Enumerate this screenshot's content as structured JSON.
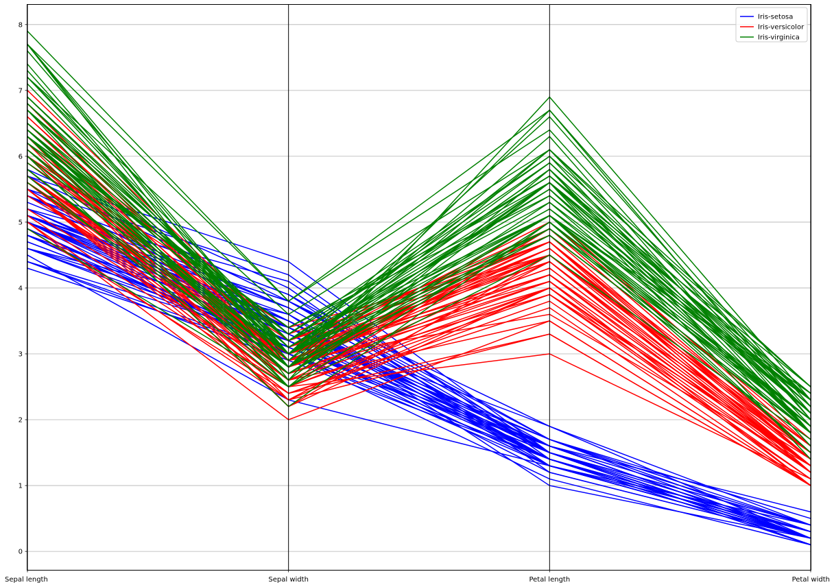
{
  "chart_data": {
    "type": "line",
    "subtype": "parallel-coordinates",
    "title": "",
    "categories": [
      "Sepal length",
      "Sepal width",
      "Petal length",
      "Petal width"
    ],
    "ylim": [
      -0.28,
      8.3
    ],
    "yticks": [
      0,
      1,
      2,
      3,
      4,
      5,
      6,
      7,
      8
    ],
    "grid": true,
    "legend": {
      "placement": "top-right"
    },
    "colors": {
      "Iris-setosa": "#0000ff",
      "Iris-versicolor": "#ff0000",
      "Iris-virginica": "#008000"
    },
    "series": [
      {
        "name": "Iris-setosa",
        "records": [
          [
            5.1,
            3.5,
            1.4,
            0.2
          ],
          [
            4.9,
            3.0,
            1.4,
            0.2
          ],
          [
            4.7,
            3.2,
            1.3,
            0.2
          ],
          [
            4.6,
            3.1,
            1.5,
            0.2
          ],
          [
            5.0,
            3.6,
            1.4,
            0.2
          ],
          [
            5.4,
            3.9,
            1.7,
            0.4
          ],
          [
            4.6,
            3.4,
            1.4,
            0.3
          ],
          [
            5.0,
            3.4,
            1.5,
            0.2
          ],
          [
            4.4,
            2.9,
            1.4,
            0.2
          ],
          [
            4.9,
            3.1,
            1.5,
            0.1
          ],
          [
            5.4,
            3.7,
            1.5,
            0.2
          ],
          [
            4.8,
            3.4,
            1.6,
            0.2
          ],
          [
            4.8,
            3.0,
            1.4,
            0.1
          ],
          [
            4.3,
            3.0,
            1.1,
            0.1
          ],
          [
            5.8,
            4.0,
            1.2,
            0.2
          ],
          [
            5.7,
            4.4,
            1.5,
            0.4
          ],
          [
            5.4,
            3.9,
            1.3,
            0.4
          ],
          [
            5.1,
            3.5,
            1.4,
            0.3
          ],
          [
            5.7,
            3.8,
            1.7,
            0.3
          ],
          [
            5.1,
            3.8,
            1.5,
            0.3
          ],
          [
            5.4,
            3.4,
            1.7,
            0.2
          ],
          [
            5.1,
            3.7,
            1.5,
            0.4
          ],
          [
            4.6,
            3.6,
            1.0,
            0.2
          ],
          [
            5.1,
            3.3,
            1.7,
            0.5
          ],
          [
            4.8,
            3.4,
            1.9,
            0.2
          ],
          [
            5.0,
            3.0,
            1.6,
            0.2
          ],
          [
            5.0,
            3.4,
            1.6,
            0.4
          ],
          [
            5.2,
            3.5,
            1.5,
            0.2
          ],
          [
            5.2,
            3.4,
            1.4,
            0.2
          ],
          [
            4.7,
            3.2,
            1.6,
            0.2
          ],
          [
            4.8,
            3.1,
            1.6,
            0.2
          ],
          [
            5.4,
            3.4,
            1.5,
            0.4
          ],
          [
            5.2,
            4.1,
            1.5,
            0.1
          ],
          [
            5.5,
            4.2,
            1.4,
            0.2
          ],
          [
            4.9,
            3.1,
            1.5,
            0.1
          ],
          [
            5.0,
            3.2,
            1.2,
            0.2
          ],
          [
            5.5,
            3.5,
            1.3,
            0.2
          ],
          [
            4.9,
            3.1,
            1.5,
            0.1
          ],
          [
            4.4,
            3.0,
            1.3,
            0.2
          ],
          [
            5.1,
            3.4,
            1.5,
            0.2
          ],
          [
            5.0,
            3.5,
            1.3,
            0.3
          ],
          [
            4.5,
            2.3,
            1.3,
            0.3
          ],
          [
            4.4,
            3.2,
            1.3,
            0.2
          ],
          [
            5.0,
            3.5,
            1.6,
            0.6
          ],
          [
            5.1,
            3.8,
            1.9,
            0.4
          ],
          [
            4.8,
            3.0,
            1.4,
            0.3
          ],
          [
            5.1,
            3.8,
            1.6,
            0.2
          ],
          [
            4.6,
            3.2,
            1.4,
            0.2
          ],
          [
            5.3,
            3.7,
            1.5,
            0.2
          ],
          [
            5.0,
            3.3,
            1.4,
            0.2
          ]
        ]
      },
      {
        "name": "Iris-versicolor",
        "records": [
          [
            7.0,
            3.2,
            4.7,
            1.4
          ],
          [
            6.4,
            3.2,
            4.5,
            1.5
          ],
          [
            6.9,
            3.1,
            4.9,
            1.5
          ],
          [
            5.5,
            2.3,
            4.0,
            1.3
          ],
          [
            6.5,
            2.8,
            4.6,
            1.5
          ],
          [
            5.7,
            2.8,
            4.5,
            1.3
          ],
          [
            6.3,
            3.3,
            4.7,
            1.6
          ],
          [
            4.9,
            2.4,
            3.3,
            1.0
          ],
          [
            6.6,
            2.9,
            4.6,
            1.3
          ],
          [
            5.2,
            2.7,
            3.9,
            1.4
          ],
          [
            5.0,
            2.0,
            3.5,
            1.0
          ],
          [
            5.9,
            3.0,
            4.2,
            1.5
          ],
          [
            6.0,
            2.2,
            4.0,
            1.0
          ],
          [
            6.1,
            2.9,
            4.7,
            1.4
          ],
          [
            5.6,
            2.9,
            3.6,
            1.3
          ],
          [
            6.7,
            3.1,
            4.4,
            1.4
          ],
          [
            5.6,
            3.0,
            4.5,
            1.5
          ],
          [
            5.8,
            2.7,
            4.1,
            1.0
          ],
          [
            6.2,
            2.2,
            4.5,
            1.5
          ],
          [
            5.6,
            2.5,
            3.9,
            1.1
          ],
          [
            5.9,
            3.2,
            4.8,
            1.8
          ],
          [
            6.1,
            2.8,
            4.0,
            1.3
          ],
          [
            6.3,
            2.5,
            4.9,
            1.5
          ],
          [
            6.1,
            2.8,
            4.7,
            1.2
          ],
          [
            6.4,
            2.9,
            4.3,
            1.3
          ],
          [
            6.6,
            3.0,
            4.4,
            1.4
          ],
          [
            6.8,
            2.8,
            4.8,
            1.4
          ],
          [
            6.7,
            3.0,
            5.0,
            1.7
          ],
          [
            6.0,
            2.9,
            4.5,
            1.5
          ],
          [
            5.7,
            2.6,
            3.5,
            1.0
          ],
          [
            5.5,
            2.4,
            3.8,
            1.1
          ],
          [
            5.5,
            2.4,
            3.7,
            1.0
          ],
          [
            5.8,
            2.7,
            3.9,
            1.2
          ],
          [
            6.0,
            2.7,
            5.1,
            1.6
          ],
          [
            5.4,
            3.0,
            4.5,
            1.5
          ],
          [
            6.0,
            3.4,
            4.5,
            1.6
          ],
          [
            6.7,
            3.1,
            4.7,
            1.5
          ],
          [
            6.3,
            2.3,
            4.4,
            1.3
          ],
          [
            5.6,
            3.0,
            4.1,
            1.3
          ],
          [
            5.5,
            2.5,
            4.0,
            1.3
          ],
          [
            5.5,
            2.6,
            4.4,
            1.2
          ],
          [
            6.1,
            3.0,
            4.6,
            1.4
          ],
          [
            5.8,
            2.6,
            4.0,
            1.2
          ],
          [
            5.0,
            2.3,
            3.3,
            1.0
          ],
          [
            5.6,
            2.7,
            4.2,
            1.3
          ],
          [
            5.7,
            3.0,
            4.2,
            1.2
          ],
          [
            5.7,
            2.9,
            4.2,
            1.3
          ],
          [
            6.2,
            2.9,
            4.3,
            1.3
          ],
          [
            5.1,
            2.5,
            3.0,
            1.1
          ],
          [
            5.7,
            2.8,
            4.1,
            1.3
          ]
        ]
      },
      {
        "name": "Iris-virginica",
        "records": [
          [
            6.3,
            3.3,
            6.0,
            2.5
          ],
          [
            5.8,
            2.7,
            5.1,
            1.9
          ],
          [
            7.1,
            3.0,
            5.9,
            2.1
          ],
          [
            6.3,
            2.9,
            5.6,
            1.8
          ],
          [
            6.5,
            3.0,
            5.8,
            2.2
          ],
          [
            7.6,
            3.0,
            6.6,
            2.1
          ],
          [
            4.9,
            2.5,
            4.5,
            1.7
          ],
          [
            7.3,
            2.9,
            6.3,
            1.8
          ],
          [
            6.7,
            2.5,
            5.8,
            1.8
          ],
          [
            7.2,
            3.6,
            6.1,
            2.5
          ],
          [
            6.5,
            3.2,
            5.1,
            2.0
          ],
          [
            6.4,
            2.7,
            5.3,
            1.9
          ],
          [
            6.8,
            3.0,
            5.5,
            2.1
          ],
          [
            5.7,
            2.5,
            5.0,
            2.0
          ],
          [
            5.8,
            2.8,
            5.1,
            2.4
          ],
          [
            6.4,
            3.2,
            5.3,
            2.3
          ],
          [
            6.5,
            3.0,
            5.5,
            1.8
          ],
          [
            7.7,
            3.8,
            6.7,
            2.2
          ],
          [
            7.7,
            2.6,
            6.9,
            2.3
          ],
          [
            6.0,
            2.2,
            5.0,
            1.5
          ],
          [
            6.9,
            3.2,
            5.7,
            2.3
          ],
          [
            5.6,
            2.8,
            4.9,
            2.0
          ],
          [
            7.7,
            2.8,
            6.7,
            2.0
          ],
          [
            6.3,
            2.7,
            4.9,
            1.8
          ],
          [
            6.7,
            3.3,
            5.7,
            2.1
          ],
          [
            7.2,
            3.2,
            6.0,
            1.8
          ],
          [
            6.2,
            2.8,
            4.8,
            1.8
          ],
          [
            6.1,
            3.0,
            4.9,
            1.8
          ],
          [
            6.4,
            2.8,
            5.6,
            2.1
          ],
          [
            7.2,
            3.0,
            5.8,
            1.6
          ],
          [
            7.4,
            2.8,
            6.1,
            1.9
          ],
          [
            7.9,
            3.8,
            6.4,
            2.0
          ],
          [
            6.4,
            2.8,
            5.6,
            2.2
          ],
          [
            6.3,
            2.8,
            5.1,
            1.5
          ],
          [
            6.1,
            2.6,
            5.6,
            1.4
          ],
          [
            7.7,
            3.0,
            6.1,
            2.3
          ],
          [
            6.3,
            3.4,
            5.6,
            2.4
          ],
          [
            6.4,
            3.1,
            5.5,
            1.8
          ],
          [
            6.0,
            3.0,
            4.8,
            1.8
          ],
          [
            6.9,
            3.1,
            5.4,
            2.1
          ],
          [
            6.7,
            3.1,
            5.6,
            2.4
          ],
          [
            6.9,
            3.1,
            5.1,
            2.3
          ],
          [
            5.8,
            2.7,
            5.1,
            1.9
          ],
          [
            6.8,
            3.2,
            5.9,
            2.3
          ],
          [
            6.7,
            3.3,
            5.7,
            2.5
          ],
          [
            6.7,
            3.0,
            5.2,
            2.3
          ],
          [
            6.3,
            2.5,
            5.0,
            1.9
          ],
          [
            6.5,
            3.0,
            5.2,
            2.0
          ],
          [
            6.2,
            3.4,
            5.4,
            2.3
          ],
          [
            5.9,
            3.0,
            5.1,
            1.8
          ]
        ]
      }
    ]
  }
}
